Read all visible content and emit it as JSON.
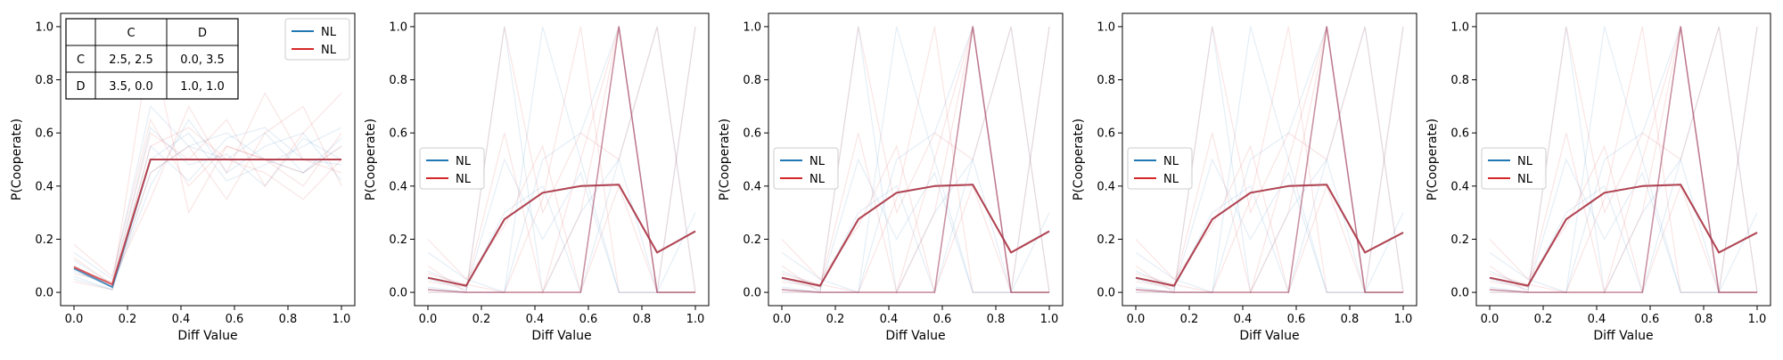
{
  "figure": {
    "background": "#ffffff"
  },
  "colors": {
    "series_a": "#1f77b4",
    "series_b": "#d62728",
    "bold_line": "#9e3a5a",
    "grid": "none"
  },
  "payoff_table": {
    "col_headers": [
      "",
      "C",
      "D"
    ],
    "rows": [
      {
        "label": "C",
        "cells": [
          "2.5, 2.5",
          "0.0, 3.5"
        ]
      },
      {
        "label": "D",
        "cells": [
          "3.5, 0.0",
          "1.0, 1.0"
        ]
      }
    ]
  },
  "chart_data": [
    {
      "type": "line",
      "xlabel": "Diff Value",
      "ylabel": "P(Cooperate)",
      "xlim": [
        -0.05,
        1.05
      ],
      "ylim": [
        -0.05,
        1.05
      ],
      "xticks": [
        "0.0",
        "0.2",
        "0.4",
        "0.6",
        "0.8",
        "1.0"
      ],
      "yticks": [
        "0.0",
        "0.2",
        "0.4",
        "0.6",
        "0.8",
        "1.0"
      ],
      "legend": {
        "placement": "upper right",
        "entries": [
          {
            "label": "NL",
            "color": "#1f77b4"
          },
          {
            "label": "NL",
            "color": "#d62728"
          }
        ]
      },
      "show_payoff_table": true,
      "x": [
        0.0,
        0.143,
        0.286,
        0.429,
        0.571,
        0.714,
        0.857,
        1.0
      ],
      "mean_series": [
        {
          "color": "#1f77b4",
          "values": [
            0.09,
            0.02,
            0.5,
            0.5,
            0.5,
            0.5,
            0.5,
            0.5
          ]
        },
        {
          "color": "#d62728",
          "values": [
            0.095,
            0.03,
            0.5,
            0.5,
            0.5,
            0.5,
            0.5,
            0.5
          ]
        }
      ],
      "faint_series": [
        {
          "color": "#1f77b4",
          "values": [
            0.05,
            0.01,
            0.45,
            0.55,
            0.5,
            0.6,
            0.45,
            0.55
          ]
        },
        {
          "color": "#1f77b4",
          "values": [
            0.12,
            0.03,
            0.62,
            0.48,
            0.52,
            0.4,
            0.58,
            0.5
          ]
        },
        {
          "color": "#1f77b4",
          "values": [
            0.08,
            0.02,
            0.4,
            0.65,
            0.45,
            0.55,
            0.6,
            0.42
          ]
        },
        {
          "color": "#1f77b4",
          "values": [
            0.15,
            0.05,
            0.7,
            0.55,
            0.6,
            0.5,
            0.45,
            0.58
          ]
        },
        {
          "color": "#1f77b4",
          "values": [
            0.1,
            0.02,
            0.55,
            0.42,
            0.58,
            0.62,
            0.5,
            0.48
          ]
        },
        {
          "color": "#1f77b4",
          "values": [
            0.06,
            0.01,
            0.5,
            0.6,
            0.42,
            0.48,
            0.55,
            0.62
          ]
        },
        {
          "color": "#d62728",
          "values": [
            0.1,
            0.02,
            0.95,
            0.3,
            0.55,
            0.5,
            0.4,
            0.6
          ]
        },
        {
          "color": "#d62728",
          "values": [
            0.07,
            0.04,
            0.35,
            0.7,
            0.45,
            0.75,
            0.5,
            0.45
          ]
        },
        {
          "color": "#d62728",
          "values": [
            0.13,
            0.03,
            0.6,
            0.5,
            0.65,
            0.4,
            0.6,
            0.75
          ]
        },
        {
          "color": "#d62728",
          "values": [
            0.09,
            0.02,
            0.45,
            0.55,
            0.35,
            0.6,
            0.7,
            0.4
          ]
        },
        {
          "color": "#d62728",
          "values": [
            0.18,
            0.06,
            0.65,
            0.4,
            0.55,
            0.5,
            0.45,
            0.55
          ]
        },
        {
          "color": "#d62728",
          "values": [
            0.04,
            0.01,
            0.55,
            0.62,
            0.5,
            0.45,
            0.35,
            0.5
          ]
        }
      ]
    },
    {
      "type": "line",
      "xlabel": "Diff Value",
      "ylabel": "P(Cooperate)",
      "xlim": [
        -0.05,
        1.05
      ],
      "ylim": [
        -0.05,
        1.05
      ],
      "xticks": [
        "0.0",
        "0.2",
        "0.4",
        "0.6",
        "0.8",
        "1.0"
      ],
      "yticks": [
        "0.0",
        "0.2",
        "0.4",
        "0.6",
        "0.8",
        "1.0"
      ],
      "legend": {
        "placement": "center left",
        "entries": [
          {
            "label": "NL",
            "color": "#1f77b4"
          },
          {
            "label": "NL",
            "color": "#d62728"
          }
        ]
      },
      "show_payoff_table": false,
      "x": [
        0.0,
        0.143,
        0.286,
        0.429,
        0.571,
        0.714,
        0.857,
        1.0
      ],
      "mean_series": [
        {
          "color": "#1f77b4",
          "values": [
            0.055,
            0.025,
            0.275,
            0.375,
            0.4,
            0.405,
            0.15,
            0.23
          ]
        },
        {
          "color": "#d62728",
          "values": [
            0.055,
            0.025,
            0.275,
            0.375,
            0.4,
            0.405,
            0.15,
            0.23
          ]
        },
        {
          "color": "#9e3a5a",
          "values": [
            0.01,
            0.0,
            0.0,
            0.0,
            0.0,
            1.0,
            0.0,
            0.0
          ]
        }
      ],
      "faint_series": [
        {
          "color": "#1f77b4",
          "values": [
            0.02,
            0.0,
            1.0,
            0.0,
            0.3,
            0.5,
            0.0,
            1.0
          ]
        },
        {
          "color": "#1f77b4",
          "values": [
            0.15,
            0.05,
            0.0,
            0.5,
            0.6,
            1.0,
            0.0,
            0.0
          ]
        },
        {
          "color": "#1f77b4",
          "values": [
            0.08,
            0.02,
            0.3,
            0.4,
            0.0,
            0.5,
            1.0,
            0.0
          ]
        },
        {
          "color": "#1f77b4",
          "values": [
            0.0,
            0.0,
            0.0,
            1.0,
            0.5,
            0.0,
            0.0,
            0.3
          ]
        },
        {
          "color": "#1f77b4",
          "values": [
            0.05,
            0.01,
            0.5,
            0.2,
            0.45,
            0.0,
            0.0,
            0.0
          ]
        },
        {
          "color": "#d62728",
          "values": [
            0.1,
            0.0,
            0.0,
            0.35,
            1.0,
            0.0,
            0.0,
            0.0
          ]
        },
        {
          "color": "#d62728",
          "values": [
            0.04,
            0.02,
            0.6,
            0.0,
            0.5,
            1.0,
            0.0,
            1.0
          ]
        },
        {
          "color": "#d62728",
          "values": [
            0.2,
            0.05,
            0.25,
            0.55,
            0.0,
            0.4,
            0.0,
            0.0
          ]
        },
        {
          "color": "#d62728",
          "values": [
            0.0,
            0.0,
            1.0,
            0.3,
            0.6,
            0.5,
            1.0,
            0.0
          ]
        },
        {
          "color": "#d62728",
          "values": [
            0.07,
            0.03,
            0.0,
            0.0,
            0.3,
            1.0,
            0.0,
            0.0
          ]
        }
      ]
    },
    {
      "type": "line",
      "xlabel": "Diff Value",
      "ylabel": "P(Cooperate)",
      "xlim": [
        -0.05,
        1.05
      ],
      "ylim": [
        -0.05,
        1.05
      ],
      "xticks": [
        "0.0",
        "0.2",
        "0.4",
        "0.6",
        "0.8",
        "1.0"
      ],
      "yticks": [
        "0.0",
        "0.2",
        "0.4",
        "0.6",
        "0.8",
        "1.0"
      ],
      "legend": {
        "placement": "center left",
        "entries": [
          {
            "label": "NL",
            "color": "#1f77b4"
          },
          {
            "label": "NL",
            "color": "#d62728"
          }
        ]
      },
      "show_payoff_table": false,
      "x": [
        0.0,
        0.143,
        0.286,
        0.429,
        0.571,
        0.714,
        0.857,
        1.0
      ],
      "mean_series": [
        {
          "color": "#1f77b4",
          "values": [
            0.055,
            0.025,
            0.275,
            0.375,
            0.4,
            0.405,
            0.15,
            0.23
          ]
        },
        {
          "color": "#d62728",
          "values": [
            0.055,
            0.025,
            0.275,
            0.375,
            0.4,
            0.405,
            0.15,
            0.23
          ]
        },
        {
          "color": "#9e3a5a",
          "values": [
            0.01,
            0.0,
            0.0,
            0.0,
            0.0,
            1.0,
            0.0,
            0.0
          ]
        }
      ],
      "faint_series": [
        {
          "color": "#1f77b4",
          "values": [
            0.02,
            0.0,
            1.0,
            0.0,
            0.3,
            0.5,
            0.0,
            1.0
          ]
        },
        {
          "color": "#1f77b4",
          "values": [
            0.15,
            0.05,
            0.0,
            0.5,
            0.6,
            1.0,
            0.0,
            0.0
          ]
        },
        {
          "color": "#1f77b4",
          "values": [
            0.08,
            0.02,
            0.3,
            0.4,
            0.0,
            0.5,
            1.0,
            0.0
          ]
        },
        {
          "color": "#1f77b4",
          "values": [
            0.0,
            0.0,
            0.0,
            1.0,
            0.5,
            0.0,
            0.0,
            0.3
          ]
        },
        {
          "color": "#1f77b4",
          "values": [
            0.05,
            0.01,
            0.5,
            0.2,
            0.45,
            0.0,
            0.0,
            0.0
          ]
        },
        {
          "color": "#d62728",
          "values": [
            0.1,
            0.0,
            0.0,
            0.35,
            1.0,
            0.0,
            0.0,
            0.0
          ]
        },
        {
          "color": "#d62728",
          "values": [
            0.04,
            0.02,
            0.6,
            0.0,
            0.5,
            1.0,
            0.0,
            1.0
          ]
        },
        {
          "color": "#d62728",
          "values": [
            0.2,
            0.05,
            0.25,
            0.55,
            0.0,
            0.4,
            0.0,
            0.0
          ]
        },
        {
          "color": "#d62728",
          "values": [
            0.0,
            0.0,
            1.0,
            0.3,
            0.6,
            0.5,
            1.0,
            0.0
          ]
        },
        {
          "color": "#d62728",
          "values": [
            0.07,
            0.03,
            0.0,
            0.0,
            0.3,
            1.0,
            0.0,
            0.0
          ]
        }
      ]
    },
    {
      "type": "line",
      "xlabel": "Diff Value",
      "ylabel": "P(Cooperate)",
      "xlim": [
        -0.05,
        1.05
      ],
      "ylim": [
        -0.05,
        1.05
      ],
      "xticks": [
        "0.0",
        "0.2",
        "0.4",
        "0.6",
        "0.8",
        "1.0"
      ],
      "yticks": [
        "0.0",
        "0.2",
        "0.4",
        "0.6",
        "0.8",
        "1.0"
      ],
      "legend": {
        "placement": "center left",
        "entries": [
          {
            "label": "NL",
            "color": "#1f77b4"
          },
          {
            "label": "NL",
            "color": "#d62728"
          }
        ]
      },
      "show_payoff_table": false,
      "x": [
        0.0,
        0.143,
        0.286,
        0.429,
        0.571,
        0.714,
        0.857,
        1.0
      ],
      "mean_series": [
        {
          "color": "#1f77b4",
          "values": [
            0.055,
            0.025,
            0.275,
            0.375,
            0.4,
            0.405,
            0.15,
            0.225
          ]
        },
        {
          "color": "#d62728",
          "values": [
            0.055,
            0.025,
            0.275,
            0.375,
            0.4,
            0.405,
            0.15,
            0.225
          ]
        },
        {
          "color": "#9e3a5a",
          "values": [
            0.01,
            0.0,
            0.0,
            0.0,
            0.0,
            1.0,
            0.0,
            0.0
          ]
        }
      ],
      "faint_series": [
        {
          "color": "#1f77b4",
          "values": [
            0.02,
            0.0,
            1.0,
            0.0,
            0.3,
            0.5,
            0.0,
            1.0
          ]
        },
        {
          "color": "#1f77b4",
          "values": [
            0.15,
            0.05,
            0.0,
            0.5,
            0.6,
            1.0,
            0.0,
            0.0
          ]
        },
        {
          "color": "#1f77b4",
          "values": [
            0.08,
            0.02,
            0.3,
            0.4,
            0.0,
            0.5,
            1.0,
            0.0
          ]
        },
        {
          "color": "#1f77b4",
          "values": [
            0.0,
            0.0,
            0.0,
            1.0,
            0.5,
            0.0,
            0.0,
            0.3
          ]
        },
        {
          "color": "#1f77b4",
          "values": [
            0.05,
            0.01,
            0.5,
            0.2,
            0.45,
            0.0,
            0.0,
            0.0
          ]
        },
        {
          "color": "#d62728",
          "values": [
            0.1,
            0.0,
            0.0,
            0.35,
            1.0,
            0.0,
            0.0,
            0.0
          ]
        },
        {
          "color": "#d62728",
          "values": [
            0.04,
            0.02,
            0.6,
            0.0,
            0.5,
            1.0,
            0.0,
            1.0
          ]
        },
        {
          "color": "#d62728",
          "values": [
            0.2,
            0.05,
            0.25,
            0.55,
            0.0,
            0.4,
            0.0,
            0.0
          ]
        },
        {
          "color": "#d62728",
          "values": [
            0.0,
            0.0,
            1.0,
            0.3,
            0.6,
            0.5,
            1.0,
            0.0
          ]
        },
        {
          "color": "#d62728",
          "values": [
            0.07,
            0.03,
            0.0,
            0.0,
            0.3,
            1.0,
            0.0,
            0.0
          ]
        }
      ]
    },
    {
      "type": "line",
      "xlabel": "Diff Value",
      "ylabel": "P(Cooperate)",
      "xlim": [
        -0.05,
        1.05
      ],
      "ylim": [
        -0.05,
        1.05
      ],
      "xticks": [
        "0.0",
        "0.2",
        "0.4",
        "0.6",
        "0.8",
        "1.0"
      ],
      "yticks": [
        "0.0",
        "0.2",
        "0.4",
        "0.6",
        "0.8",
        "1.0"
      ],
      "legend": {
        "placement": "center left",
        "entries": [
          {
            "label": "NL",
            "color": "#1f77b4"
          },
          {
            "label": "NL",
            "color": "#d62728"
          }
        ]
      },
      "show_payoff_table": false,
      "x": [
        0.0,
        0.143,
        0.286,
        0.429,
        0.571,
        0.714,
        0.857,
        1.0
      ],
      "mean_series": [
        {
          "color": "#1f77b4",
          "values": [
            0.055,
            0.025,
            0.275,
            0.375,
            0.4,
            0.405,
            0.15,
            0.225
          ]
        },
        {
          "color": "#d62728",
          "values": [
            0.055,
            0.025,
            0.275,
            0.375,
            0.4,
            0.405,
            0.15,
            0.225
          ]
        },
        {
          "color": "#9e3a5a",
          "values": [
            0.01,
            0.0,
            0.0,
            0.0,
            0.0,
            1.0,
            0.0,
            0.0
          ]
        }
      ],
      "faint_series": [
        {
          "color": "#1f77b4",
          "values": [
            0.02,
            0.0,
            1.0,
            0.0,
            0.3,
            0.5,
            0.0,
            1.0
          ]
        },
        {
          "color": "#1f77b4",
          "values": [
            0.15,
            0.05,
            0.0,
            0.5,
            0.6,
            1.0,
            0.0,
            0.0
          ]
        },
        {
          "color": "#1f77b4",
          "values": [
            0.08,
            0.02,
            0.3,
            0.4,
            0.0,
            0.5,
            1.0,
            0.0
          ]
        },
        {
          "color": "#1f77b4",
          "values": [
            0.0,
            0.0,
            0.0,
            1.0,
            0.5,
            0.0,
            0.0,
            0.3
          ]
        },
        {
          "color": "#1f77b4",
          "values": [
            0.05,
            0.01,
            0.5,
            0.2,
            0.45,
            0.0,
            0.0,
            0.0
          ]
        },
        {
          "color": "#d62728",
          "values": [
            0.1,
            0.0,
            0.0,
            0.35,
            1.0,
            0.0,
            0.0,
            0.0
          ]
        },
        {
          "color": "#d62728",
          "values": [
            0.04,
            0.02,
            0.6,
            0.0,
            0.5,
            1.0,
            0.0,
            1.0
          ]
        },
        {
          "color": "#d62728",
          "values": [
            0.2,
            0.05,
            0.25,
            0.55,
            0.0,
            0.4,
            0.0,
            0.0
          ]
        },
        {
          "color": "#d62728",
          "values": [
            0.0,
            0.0,
            1.0,
            0.3,
            0.6,
            0.5,
            1.0,
            0.0
          ]
        },
        {
          "color": "#d62728",
          "values": [
            0.07,
            0.03,
            0.0,
            0.0,
            0.3,
            1.0,
            0.0,
            0.0
          ]
        }
      ]
    }
  ]
}
